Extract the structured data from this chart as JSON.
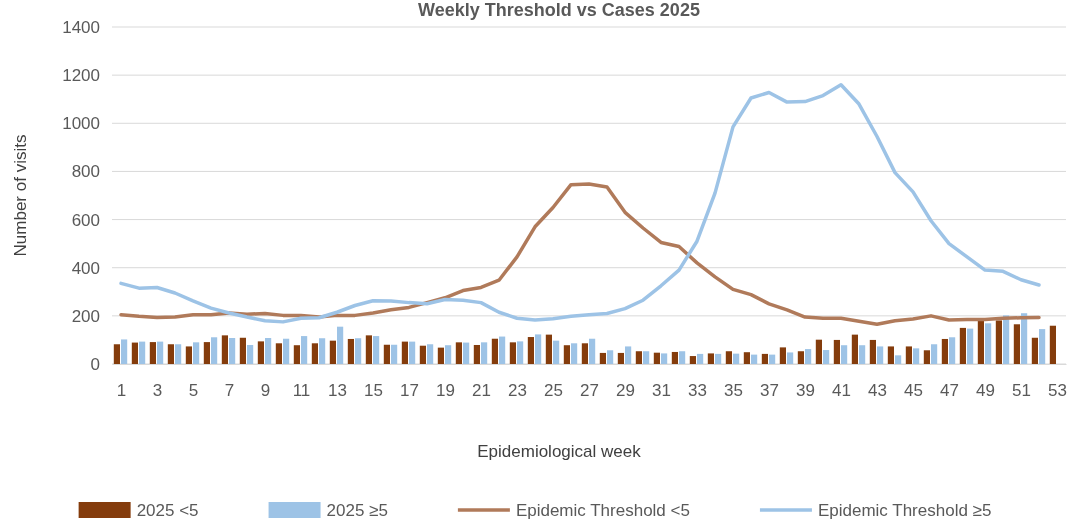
{
  "chart_data": {
    "type": "bar",
    "title": "Weekly Threshold vs Cases 2025",
    "xlabel": "Epidemiological week",
    "ylabel": "Number of visits",
    "x": [
      1,
      2,
      3,
      4,
      5,
      6,
      7,
      8,
      9,
      10,
      11,
      12,
      13,
      14,
      15,
      16,
      17,
      18,
      19,
      20,
      21,
      22,
      23,
      24,
      25,
      26,
      27,
      28,
      29,
      30,
      31,
      32,
      33,
      34,
      35,
      36,
      37,
      38,
      39,
      40,
      41,
      42,
      43,
      44,
      45,
      46,
      47,
      48,
      49,
      50,
      51,
      52,
      53
    ],
    "xlim": [
      0.5,
      53.5
    ],
    "xticks": [
      1,
      3,
      5,
      7,
      9,
      11,
      13,
      15,
      17,
      19,
      21,
      23,
      25,
      27,
      29,
      31,
      33,
      35,
      37,
      39,
      41,
      43,
      45,
      47,
      49,
      51,
      53
    ],
    "ylim": [
      0,
      1400
    ],
    "yticks": [
      0,
      200,
      400,
      600,
      800,
      1000,
      1200,
      1400
    ],
    "grid": "y",
    "legend": "bottom",
    "series": [
      {
        "name": "2025 <5",
        "color": "#843c0c",
        "values": [
          82,
          89,
          91,
          82,
          73,
          91,
          119,
          109,
          94,
          86,
          78,
          86,
          97,
          104,
          119,
          80,
          93,
          76,
          68,
          90,
          79,
          105,
          90,
          112,
          122,
          78,
          86,
          46,
          46,
          53,
          47,
          50,
          33,
          44,
          53,
          49,
          42,
          69,
          53,
          101,
          100,
          122,
          100,
          73,
          73,
          57,
          104,
          150,
          188,
          181,
          165,
          109,
          159
        ]
      },
      {
        "name": "2025 ≥5",
        "color": "#9dc3e6",
        "values": [
          102,
          93,
          93,
          82,
          90,
          111,
          108,
          79,
          108,
          105,
          116,
          107,
          155,
          107,
          116,
          80,
          93,
          82,
          78,
          89,
          90,
          114,
          94,
          123,
          97,
          86,
          105,
          57,
          73,
          53,
          44,
          53,
          42,
          42,
          43,
          39,
          39,
          48,
          62,
          58,
          78,
          78,
          73,
          36,
          65,
          82,
          111,
          147,
          169,
          202,
          211,
          145,
          null
        ]
      },
      {
        "name": "Epidemic Threshold <5",
        "type": "line",
        "color": "#b07a5a",
        "values": [
          205,
          198,
          193,
          195,
          205,
          205,
          212,
          207,
          210,
          202,
          202,
          195,
          202,
          202,
          212,
          225,
          235,
          255,
          275,
          305,
          318,
          348,
          445,
          570,
          650,
          745,
          748,
          735,
          630,
          565,
          505,
          488,
          420,
          362,
          310,
          288,
          250,
          225,
          195,
          190,
          190,
          178,
          165,
          180,
          187,
          200,
          183,
          185,
          185,
          190,
          192,
          193,
          null
        ]
      },
      {
        "name": "Epidemic Threshold ≥5",
        "type": "line",
        "color": "#9dc3e6",
        "values": [
          335,
          315,
          318,
          295,
          262,
          232,
          212,
          195,
          180,
          175,
          190,
          192,
          215,
          243,
          263,
          262,
          255,
          250,
          268,
          265,
          255,
          215,
          190,
          183,
          188,
          198,
          205,
          210,
          230,
          265,
          325,
          390,
          510,
          710,
          985,
          1105,
          1128,
          1088,
          1090,
          1115,
          1160,
          1080,
          945,
          795,
          715,
          595,
          500,
          445,
          390,
          385,
          350,
          328,
          null
        ]
      }
    ]
  }
}
